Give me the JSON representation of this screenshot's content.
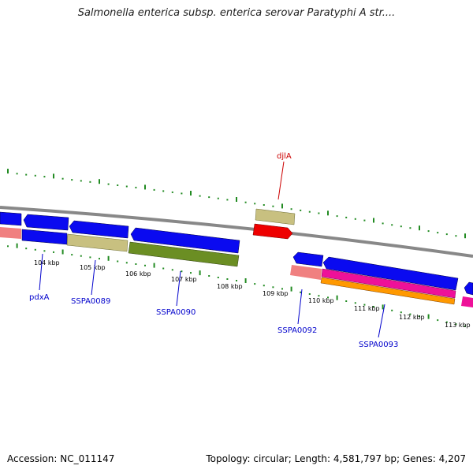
{
  "title": "Salmonella enterica subsp. enterica serovar Paratyphi A str....",
  "footer": {
    "accession": "Accession: NC_011147",
    "summary": "Topology: circular; Length: 4,581,797 bp; Genes: 4,207"
  },
  "scale_labels": [
    "104 kbp",
    "105 kbp",
    "106 kbp",
    "107 kbp",
    "108 kbp",
    "109 kbp",
    "110 kbp",
    "111 kbp",
    "112 kbp",
    "113 kbp"
  ],
  "gene_labels": [
    {
      "text": "djlA",
      "color": "#cc0000"
    },
    {
      "text": "pdxA",
      "color": "#0000cc"
    },
    {
      "text": "SSPA0089",
      "color": "#0000cc"
    },
    {
      "text": "SSPA0090",
      "color": "#0000cc"
    },
    {
      "text": "SSPA0092",
      "color": "#0000cc"
    },
    {
      "text": "SSPA0093",
      "color": "#0000cc"
    }
  ],
  "colors": {
    "blue": "#0a0af0",
    "red": "#ee0000",
    "khaki": "#c8c080",
    "olive": "#6b8e23",
    "salmon": "#f08080",
    "magenta": "#ee1199",
    "orange": "#ff9900",
    "backbone": "#888888",
    "ticks": "#228b22"
  }
}
